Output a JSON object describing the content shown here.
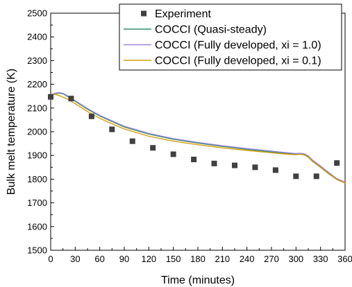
{
  "chart_data": {
    "type": "line",
    "xlabel": "Time (minutes)",
    "ylabel": "Bulk melt temperature (K)",
    "xlim": [
      0,
      360
    ],
    "ylim": [
      1500,
      2500
    ],
    "xticks": [
      0,
      30,
      60,
      90,
      120,
      150,
      180,
      210,
      240,
      270,
      300,
      330,
      360
    ],
    "yticks": [
      1500,
      1600,
      1700,
      1800,
      1900,
      2000,
      2100,
      2200,
      2300,
      2400,
      2500
    ],
    "grid": false,
    "legend_position": "top-right",
    "series": [
      {
        "name": "Experiment",
        "kind": "scatter",
        "color": "#404040",
        "x": [
          0,
          25,
          50,
          75,
          100,
          125,
          150,
          175,
          200,
          225,
          250,
          275,
          300,
          325,
          350
        ],
        "y": [
          2147,
          2140,
          2065,
          2010,
          1960,
          1932,
          1905,
          1883,
          1866,
          1858,
          1850,
          1838,
          1812,
          1812,
          1868
        ]
      },
      {
        "name": "COCCI (Quasi-steady)",
        "kind": "line",
        "color": "#2e8b6a",
        "x": [
          0,
          5,
          10,
          15,
          20,
          30,
          45,
          60,
          90,
          120,
          150,
          180,
          210,
          240,
          270,
          290,
          300,
          305,
          310,
          315,
          320,
          330,
          340,
          350,
          360
        ],
        "y": [
          2150,
          2160,
          2163,
          2160,
          2150,
          2128,
          2095,
          2066,
          2020,
          1990,
          1968,
          1952,
          1938,
          1926,
          1915,
          1908,
          1906,
          1907,
          1904,
          1895,
          1878,
          1852,
          1825,
          1800,
          1785
        ]
      },
      {
        "name": "COCCI (Fully developed, xi = 1.0)",
        "kind": "line",
        "color": "#9b86d8",
        "x": [
          0,
          5,
          10,
          15,
          20,
          30,
          45,
          60,
          90,
          120,
          150,
          180,
          210,
          240,
          270,
          290,
          300,
          305,
          310,
          315,
          320,
          330,
          340,
          350,
          360
        ],
        "y": [
          2152,
          2162,
          2165,
          2162,
          2153,
          2131,
          2098,
          2069,
          2023,
          1993,
          1971,
          1955,
          1941,
          1929,
          1918,
          1911,
          1908,
          1909,
          1907,
          1898,
          1881,
          1855,
          1828,
          1802,
          1787
        ]
      },
      {
        "name": "COCCI (Fully developed, xi = 0.1)",
        "kind": "line",
        "color": "#d4a106",
        "x": [
          0,
          5,
          10,
          15,
          20,
          30,
          45,
          60,
          90,
          120,
          150,
          180,
          210,
          240,
          270,
          290,
          300,
          305,
          310,
          315,
          320,
          330,
          340,
          350,
          360
        ],
        "y": [
          2158,
          2158,
          2153,
          2146,
          2138,
          2118,
          2085,
          2056,
          2011,
          1981,
          1960,
          1945,
          1932,
          1921,
          1911,
          1905,
          1903,
          1905,
          1902,
          1892,
          1875,
          1849,
          1822,
          1798,
          1783
        ]
      }
    ]
  }
}
